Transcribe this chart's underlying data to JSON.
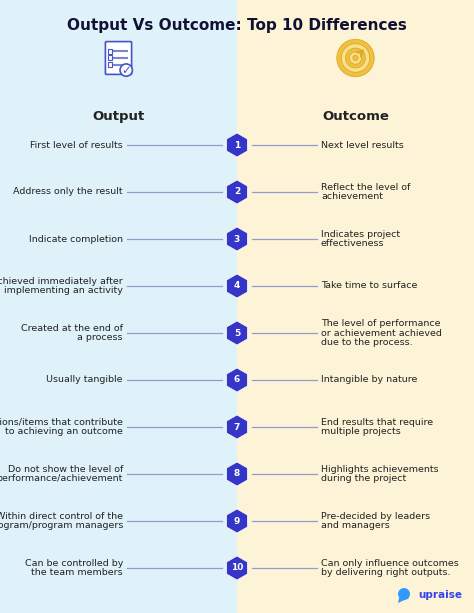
{
  "title": "Output Vs Outcome: Top 10 Differences",
  "left_bg": "#dff2fa",
  "right_bg": "#fdf4d8",
  "left_header": "Output",
  "right_header": "Outcome",
  "badge_color": "#3535c8",
  "line_color": "#9999cc",
  "text_color": "#222222",
  "header_color": "#222222",
  "title_color": "#111133",
  "upraise_color": "#3344ee",
  "figsize": [
    4.74,
    6.13
  ],
  "dpi": 100,
  "rows": [
    {
      "num": 1,
      "left": "First level of results",
      "right": "Next level results"
    },
    {
      "num": 2,
      "left": "Address only the result",
      "right": "Reflect the level of\nachievement"
    },
    {
      "num": 3,
      "left": "Indicate completion",
      "right": "Indicates project\neffectiveness"
    },
    {
      "num": 4,
      "left": "Achieved immediately after\nimplementing an activity",
      "right": "Take time to surface"
    },
    {
      "num": 5,
      "left": "Created at the end of\na process",
      "right": "The level of performance\nor achievement achieved\ndue to the process."
    },
    {
      "num": 6,
      "left": "Usually tangible",
      "right": "Intangible by nature"
    },
    {
      "num": 7,
      "left": "Actions/items that contribute\nto achieving an outcome",
      "right": "End results that require\nmultiple projects"
    },
    {
      "num": 8,
      "left": "Do not show the level of\nperformance/achievement",
      "right": "Highlights achievements\nduring the project"
    },
    {
      "num": 9,
      "left": "Within direct control of the\nprogram/program managers",
      "right": "Pre-decided by leaders\nand managers"
    },
    {
      "num": 10,
      "left": "Can be controlled by\nthe team members",
      "right": "Can only influence outcomes\nby delivering right outputs."
    }
  ]
}
